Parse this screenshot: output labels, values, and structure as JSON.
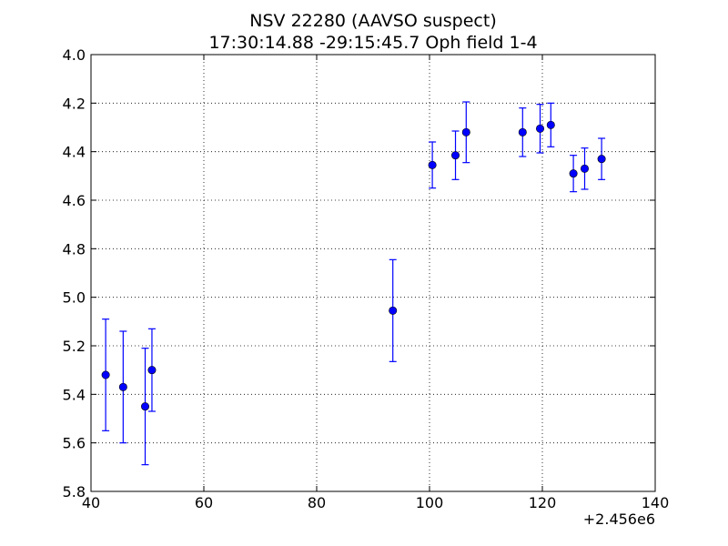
{
  "chart_data": {
    "type": "scatter",
    "title_line1": "NSV 22280  (AAVSO suspect)",
    "title_line2": "17:30:14.88 -29:15:45.7 Oph field 1-4",
    "xlabel": "",
    "ylabel": "",
    "x_offset_label": "+2.456e6",
    "xlim": [
      40,
      140
    ],
    "ylim": [
      4.0,
      5.8
    ],
    "y_inverted": true,
    "x_ticks": [
      40,
      60,
      80,
      100,
      120,
      140
    ],
    "x_tick_labels": [
      "40",
      "60",
      "80",
      "100",
      "120",
      "140"
    ],
    "y_ticks": [
      4.0,
      4.2,
      4.4,
      4.6,
      4.8,
      5.0,
      5.2,
      5.4,
      5.6,
      5.8
    ],
    "y_tick_labels": [
      "4.0",
      "4.2",
      "4.4",
      "4.6",
      "4.8",
      "5.0",
      "5.2",
      "5.4",
      "5.6",
      "5.8"
    ],
    "grid": true,
    "marker_color": "#0000ff",
    "series": [
      {
        "points": [
          {
            "x": 42.6,
            "y": 5.32,
            "err": 0.23
          },
          {
            "x": 45.7,
            "y": 5.37,
            "err": 0.23
          },
          {
            "x": 49.6,
            "y": 5.45,
            "err": 0.24
          },
          {
            "x": 50.8,
            "y": 5.3,
            "err": 0.17
          },
          {
            "x": 93.5,
            "y": 5.055,
            "err": 0.21
          },
          {
            "x": 100.5,
            "y": 4.455,
            "err": 0.095
          },
          {
            "x": 104.6,
            "y": 4.415,
            "err": 0.1
          },
          {
            "x": 106.5,
            "y": 4.32,
            "err": 0.125
          },
          {
            "x": 116.5,
            "y": 4.32,
            "err": 0.1
          },
          {
            "x": 119.6,
            "y": 4.305,
            "err": 0.1
          },
          {
            "x": 121.5,
            "y": 4.29,
            "err": 0.09
          },
          {
            "x": 125.5,
            "y": 4.49,
            "err": 0.075
          },
          {
            "x": 127.5,
            "y": 4.47,
            "err": 0.085
          },
          {
            "x": 130.5,
            "y": 4.43,
            "err": 0.085
          }
        ]
      }
    ]
  }
}
